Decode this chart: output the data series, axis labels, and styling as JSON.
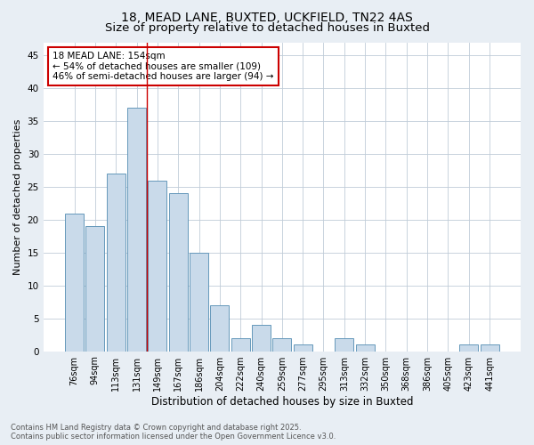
{
  "title_line1": "18, MEAD LANE, BUXTED, UCKFIELD, TN22 4AS",
  "title_line2": "Size of property relative to detached houses in Buxted",
  "xlabel": "Distribution of detached houses by size in Buxted",
  "ylabel": "Number of detached properties",
  "categories": [
    "76sqm",
    "94sqm",
    "113sqm",
    "131sqm",
    "149sqm",
    "167sqm",
    "186sqm",
    "204sqm",
    "222sqm",
    "240sqm",
    "259sqm",
    "277sqm",
    "295sqm",
    "313sqm",
    "332sqm",
    "350sqm",
    "368sqm",
    "386sqm",
    "405sqm",
    "423sqm",
    "441sqm"
  ],
  "values": [
    21,
    19,
    27,
    37,
    26,
    24,
    15,
    7,
    2,
    4,
    2,
    1,
    0,
    2,
    1,
    0,
    0,
    0,
    0,
    1,
    1
  ],
  "bar_color": "#c9daea",
  "bar_edge_color": "#6699bb",
  "red_line_x": 3.5,
  "annotation_text": "18 MEAD LANE: 154sqm\n← 54% of detached houses are smaller (109)\n46% of semi-detached houses are larger (94) →",
  "annotation_box_color": "white",
  "annotation_box_edge": "#cc0000",
  "ylim": [
    0,
    47
  ],
  "yticks": [
    0,
    5,
    10,
    15,
    20,
    25,
    30,
    35,
    40,
    45
  ],
  "footer_line1": "Contains HM Land Registry data © Crown copyright and database right 2025.",
  "footer_line2": "Contains public sector information licensed under the Open Government Licence v3.0.",
  "background_color": "#e8eef4",
  "plot_bg_color": "#ffffff",
  "grid_color": "#c0ccd8",
  "title_fontsize": 10,
  "subtitle_fontsize": 9.5,
  "tick_fontsize": 7,
  "label_fontsize": 8.5,
  "annotation_fontsize": 7.5,
  "footer_fontsize": 6,
  "ylabel_fontsize": 8
}
